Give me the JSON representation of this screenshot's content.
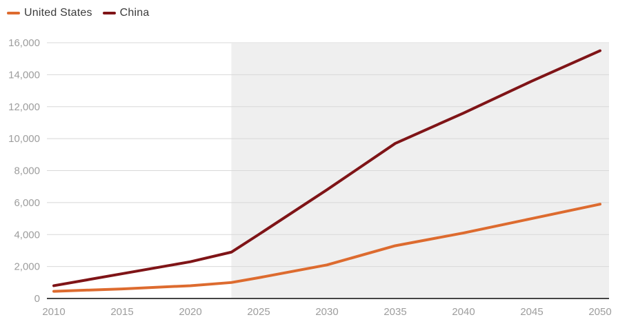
{
  "legend": [
    {
      "label": "United States",
      "color": "#dd6b2f"
    },
    {
      "label": "China",
      "color": "#7f1417"
    }
  ],
  "chart_data": {
    "type": "line",
    "title": "",
    "xlabel": "",
    "ylabel": "",
    "x": [
      2010,
      2015,
      2020,
      2023,
      2025,
      2030,
      2035,
      2040,
      2045,
      2050
    ],
    "series": [
      {
        "name": "United States",
        "color": "#dd6b2f",
        "values": [
          450,
          600,
          800,
          1000,
          1300,
          2100,
          3300,
          4100,
          5000,
          5900
        ]
      },
      {
        "name": "China",
        "color": "#7f1417",
        "values": [
          800,
          1550,
          2300,
          2900,
          4000,
          6800,
          9700,
          11600,
          13600,
          15500
        ]
      }
    ],
    "xlim": [
      2010,
      2050
    ],
    "ylim": [
      0,
      16000
    ],
    "x_ticks": [
      2010,
      2015,
      2020,
      2025,
      2030,
      2035,
      2040,
      2045,
      2050
    ],
    "x_tick_labels": [
      "2010",
      "2015",
      "2020",
      "2025",
      "2030",
      "2035",
      "2040",
      "2045",
      "2050"
    ],
    "y_ticks": [
      0,
      2000,
      4000,
      6000,
      8000,
      10000,
      12000,
      14000,
      16000
    ],
    "y_tick_labels": [
      "0",
      "2,000",
      "4,000",
      "6,000",
      "8,000",
      "10,000",
      "12,000",
      "14,000",
      "16,000"
    ],
    "grid": "horizontal",
    "legend_position": "top-left",
    "projection": {
      "start_x": 2023,
      "shading_color": "#efefef"
    },
    "colors": {
      "gridline": "#d8d8d8",
      "axis_line": "#444444",
      "tick_label": "#9d9d9d",
      "background": "#ffffff"
    }
  }
}
